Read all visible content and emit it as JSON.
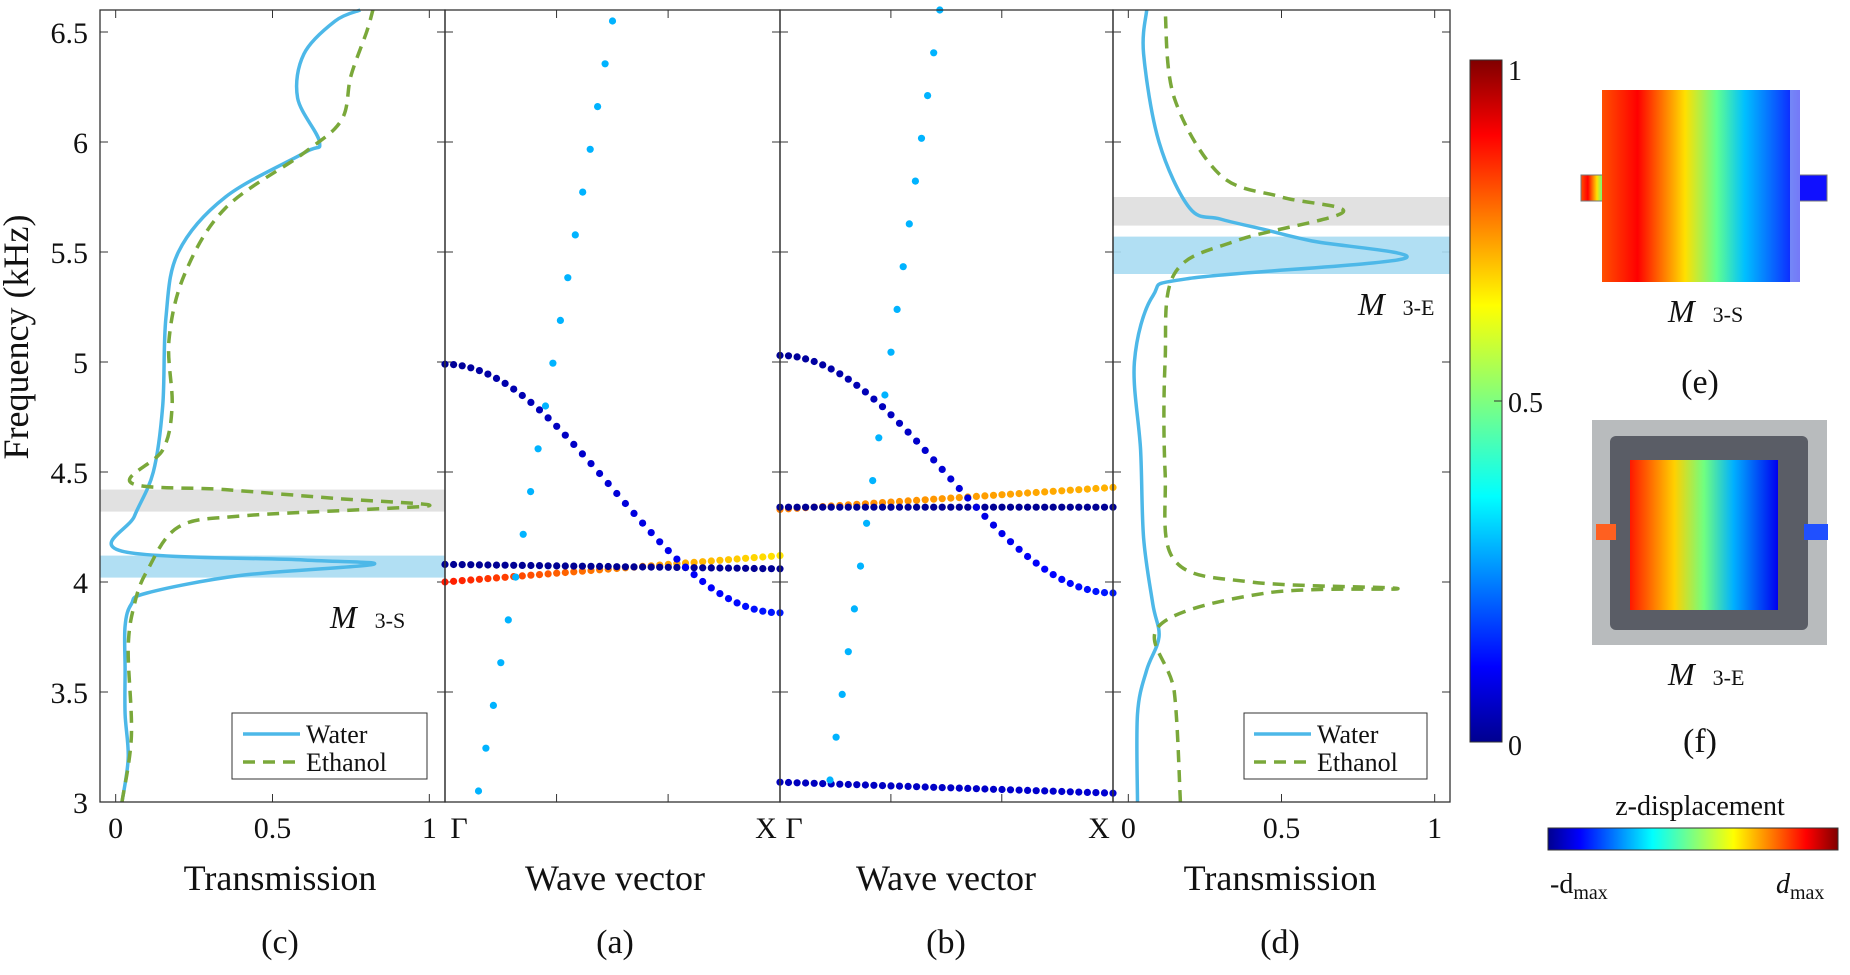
{
  "figure": {
    "ylabel": "Frequency (kHz)",
    "yticks": [
      "3",
      "3.5",
      "4",
      "4.5",
      "5",
      "5.5",
      "6",
      "6.5"
    ],
    "colors": {
      "water": "#4db8e8",
      "ethanol": "#7aa83a",
      "water_band": "#a8dcf2",
      "ethanol_band": "#dedede",
      "frame": "#333333"
    }
  },
  "colorbar": {
    "ticks": [
      "0",
      "0.5",
      "1"
    ],
    "range": [
      0,
      1
    ],
    "colormap": "jet"
  },
  "panels": {
    "c": {
      "tag": "(c)",
      "xlabel": "Transmission",
      "xticks": [
        "0",
        "0.5",
        "1"
      ],
      "mode_label": "M",
      "mode_sub": "3-S",
      "legend": [
        "Water",
        "Ethanol"
      ],
      "legend_placement": "bottom-right"
    },
    "a": {
      "tag": "(a)",
      "xlabel": "Wave vector",
      "xticks": [
        "Γ",
        "X"
      ]
    },
    "b": {
      "tag": "(b)",
      "xlabel": "Wave vector",
      "xticks": [
        "Γ",
        "X"
      ]
    },
    "d": {
      "tag": "(d)",
      "xlabel": "Transmission",
      "xticks": [
        "0",
        "0.5",
        "1"
      ],
      "mode_label": "M",
      "mode_sub": "3-E",
      "legend": [
        "Water",
        "Ethanol"
      ],
      "legend_placement": "bottom-right"
    },
    "e": {
      "tag": "(e)",
      "mode_label": "M",
      "mode_sub": "3-S",
      "icon": "mode-shape-map"
    },
    "f": {
      "tag": "(f)",
      "mode_label": "M",
      "mode_sub": "3-E",
      "icon": "mode-shape-photo-overlay"
    }
  },
  "zbar": {
    "title": "z-displacement",
    "min_label": "-d",
    "max_label": "d",
    "sub": "max"
  },
  "chart_data": [
    {
      "panel": "c",
      "type": "line",
      "xlabel": "Transmission",
      "ylabel": "Frequency (kHz)",
      "xlim": [
        -0.05,
        1.05
      ],
      "ylim": [
        3,
        6.6
      ],
      "bands": [
        {
          "series": "Water",
          "from": 4.02,
          "to": 4.12
        },
        {
          "series": "Ethanol",
          "from": 4.32,
          "to": 4.42
        }
      ],
      "series": [
        {
          "name": "Water",
          "style": "solid",
          "points": [
            [
              0.02,
              3.0
            ],
            [
              0.04,
              3.2
            ],
            [
              0.03,
              3.4
            ],
            [
              0.03,
              3.6
            ],
            [
              0.03,
              3.8
            ],
            [
              0.05,
              3.9
            ],
            [
              0.1,
              3.95
            ],
            [
              0.4,
              4.03
            ],
            [
              0.82,
              4.08
            ],
            [
              0.6,
              4.1
            ],
            [
              0.02,
              4.14
            ],
            [
              0.06,
              4.3
            ],
            [
              0.12,
              4.5
            ],
            [
              0.15,
              4.8
            ],
            [
              0.16,
              5.2
            ],
            [
              0.2,
              5.5
            ],
            [
              0.35,
              5.75
            ],
            [
              0.6,
              5.95
            ],
            [
              0.65,
              6.0
            ],
            [
              0.58,
              6.2
            ],
            [
              0.6,
              6.4
            ],
            [
              0.7,
              6.55
            ],
            [
              0.78,
              6.6
            ]
          ]
        },
        {
          "name": "Ethanol",
          "style": "dashed",
          "points": [
            [
              0.02,
              3.0
            ],
            [
              0.05,
              3.3
            ],
            [
              0.04,
              3.7
            ],
            [
              0.06,
              3.9
            ],
            [
              0.1,
              4.05
            ],
            [
              0.2,
              4.25
            ],
            [
              0.4,
              4.3
            ],
            [
              0.8,
              4.33
            ],
            [
              1.0,
              4.35
            ],
            [
              0.7,
              4.38
            ],
            [
              0.35,
              4.42
            ],
            [
              0.05,
              4.45
            ],
            [
              0.15,
              4.6
            ],
            [
              0.18,
              4.8
            ],
            [
              0.17,
              5.1
            ],
            [
              0.22,
              5.4
            ],
            [
              0.35,
              5.7
            ],
            [
              0.6,
              5.95
            ],
            [
              0.72,
              6.1
            ],
            [
              0.75,
              6.3
            ],
            [
              0.8,
              6.5
            ],
            [
              0.82,
              6.6
            ]
          ]
        }
      ]
    },
    {
      "panel": "a",
      "type": "scatter",
      "xlabel": "Wave vector",
      "ylabel": "Frequency (kHz)",
      "xticks": [
        "Γ",
        "X"
      ],
      "ylim": [
        3,
        6.6
      ],
      "colorbar_range": [
        0,
        1
      ],
      "series": [
        {
          "name": "band-1",
          "k": [
            0,
            1
          ],
          "f0": 4.0,
          "f1": 4.12,
          "shape": "linear",
          "c0": 0.85,
          "c1": 0.65,
          "n": 40
        },
        {
          "name": "band-2",
          "k": [
            0,
            1
          ],
          "f0": 4.08,
          "f1": 4.06,
          "shape": "linear",
          "c0": 0.02,
          "c1": 0.02,
          "n": 40
        },
        {
          "name": "band-3",
          "k": [
            0,
            1
          ],
          "f0": 4.99,
          "f1": 3.86,
          "shape": "cosine",
          "c0": 0.02,
          "c1": 0.15,
          "n": 40
        },
        {
          "name": "band-4",
          "k": [
            0.1,
            0.5
          ],
          "f0": 3.05,
          "f1": 6.55,
          "shape": "linear",
          "c0": 0.3,
          "c1": 0.3,
          "n": 19
        }
      ]
    },
    {
      "panel": "b",
      "type": "scatter",
      "xlabel": "Wave vector",
      "ylabel": "Frequency (kHz)",
      "xticks": [
        "Γ",
        "X"
      ],
      "ylim": [
        3,
        6.6
      ],
      "colorbar_range": [
        0,
        1
      ],
      "series": [
        {
          "name": "band-1",
          "k": [
            0,
            1
          ],
          "f0": 4.33,
          "f1": 4.43,
          "shape": "linear",
          "c0": 0.75,
          "c1": 0.7,
          "n": 40
        },
        {
          "name": "band-2",
          "k": [
            0,
            1
          ],
          "f0": 4.34,
          "f1": 4.34,
          "shape": "linear",
          "c0": 0.02,
          "c1": 0.02,
          "n": 40
        },
        {
          "name": "band-3",
          "k": [
            0,
            1
          ],
          "f0": 5.03,
          "f1": 3.95,
          "shape": "cosine",
          "c0": 0.02,
          "c1": 0.15,
          "n": 40
        },
        {
          "name": "band-4",
          "k": [
            0,
            1
          ],
          "f0": 3.09,
          "f1": 3.04,
          "shape": "linear",
          "c0": 0.06,
          "c1": 0.08,
          "n": 40
        },
        {
          "name": "band-5",
          "k": [
            0.15,
            0.48
          ],
          "f0": 3.1,
          "f1": 6.6,
          "shape": "linear",
          "c0": 0.3,
          "c1": 0.3,
          "n": 19
        }
      ]
    },
    {
      "panel": "d",
      "type": "line",
      "xlabel": "Transmission",
      "ylabel": "Frequency (kHz)",
      "xlim": [
        -0.05,
        1.05
      ],
      "ylim": [
        3,
        6.6
      ],
      "bands": [
        {
          "series": "Water",
          "from": 5.4,
          "to": 5.57
        },
        {
          "series": "Ethanol",
          "from": 5.62,
          "to": 5.75
        }
      ],
      "series": [
        {
          "name": "Water",
          "style": "solid",
          "points": [
            [
              0.03,
              3.0
            ],
            [
              0.03,
              3.4
            ],
            [
              0.06,
              3.6
            ],
            [
              0.1,
              3.75
            ],
            [
              0.08,
              3.9
            ],
            [
              0.05,
              4.2
            ],
            [
              0.04,
              4.6
            ],
            [
              0.02,
              5.0
            ],
            [
              0.08,
              5.3
            ],
            [
              0.2,
              5.38
            ],
            [
              0.9,
              5.47
            ],
            [
              0.6,
              5.55
            ],
            [
              0.45,
              5.6
            ],
            [
              0.3,
              5.65
            ],
            [
              0.2,
              5.7
            ],
            [
              0.1,
              6.0
            ],
            [
              0.05,
              6.4
            ],
            [
              0.06,
              6.6
            ]
          ]
        },
        {
          "name": "Ethanol",
          "style": "dashed",
          "points": [
            [
              0.17,
              3.0
            ],
            [
              0.15,
              3.5
            ],
            [
              0.1,
              3.8
            ],
            [
              0.45,
              3.95
            ],
            [
              0.88,
              3.97
            ],
            [
              0.4,
              4.0
            ],
            [
              0.15,
              4.1
            ],
            [
              0.12,
              4.5
            ],
            [
              0.12,
              5.0
            ],
            [
              0.15,
              5.4
            ],
            [
              0.35,
              5.55
            ],
            [
              0.7,
              5.68
            ],
            [
              0.5,
              5.75
            ],
            [
              0.3,
              5.85
            ],
            [
              0.15,
              6.2
            ],
            [
              0.12,
              6.6
            ]
          ]
        }
      ]
    }
  ]
}
